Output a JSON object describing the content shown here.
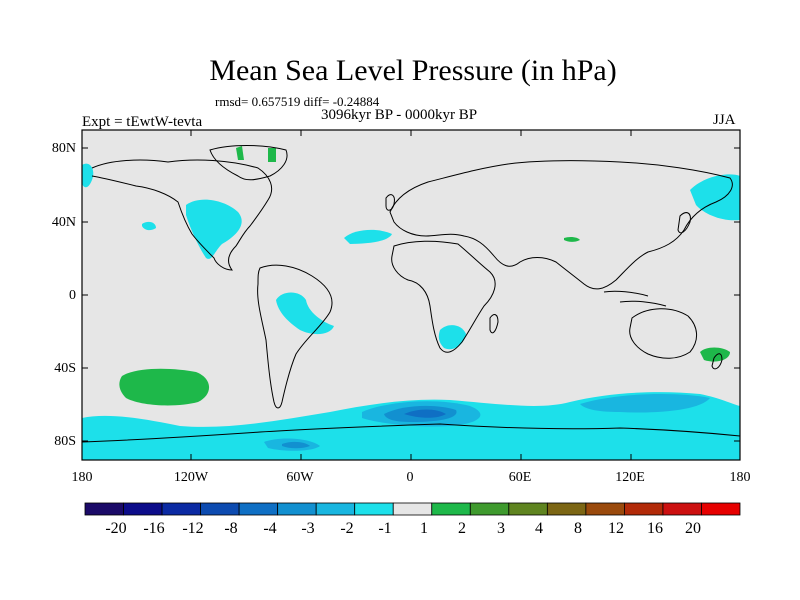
{
  "title": "Mean Sea Level Pressure (in hPa)",
  "stats_line": "rmsd= 0.657519 diff= -0.24884",
  "period_line": "3096kyr BP - 0000kyr BP",
  "experiment_line": "Expt = tEwtW-tevta",
  "season": "JJA",
  "lat_labels": [
    "80N",
    "40N",
    "0",
    "40S",
    "80S"
  ],
  "lon_labels": [
    "180",
    "120W",
    "60W",
    "0",
    "60E",
    "120E",
    "180"
  ],
  "colorbar": {
    "tick_labels": [
      "-20",
      "-16",
      "-12",
      "-8",
      "-4",
      "-3",
      "-2",
      "-1",
      "1",
      "2",
      "3",
      "4",
      "8",
      "12",
      "16",
      "20"
    ],
    "colors": [
      "#1b0a68",
      "#0c0c8a",
      "#0b2aa3",
      "#0d4bb0",
      "#0f6fc4",
      "#1290d0",
      "#19b6e0",
      "#1de0ea",
      "#e6e6e6",
      "#1eb84a",
      "#3f9a2e",
      "#5f8420",
      "#7c6614",
      "#9a4a0c",
      "#b22a08",
      "#cc1010",
      "#e60000"
    ]
  },
  "map_colors": {
    "background": "#e6e6e6",
    "cyan_light": "#1de0ea",
    "cyan_mid": "#19b6e0",
    "blue_mid": "#1290d0",
    "blue_dark": "#0f6fc4",
    "green": "#1eb84a"
  }
}
